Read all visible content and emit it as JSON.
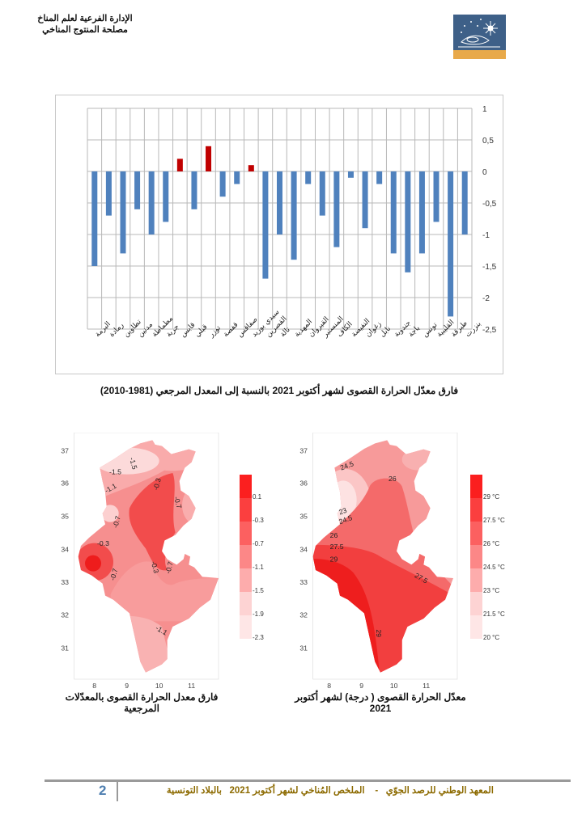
{
  "header": {
    "line1": "الإدارة الفرعية لعلم المناخ",
    "line2": "مصلحة المنتوج المناخي"
  },
  "chart_data": {
    "type": "bar",
    "title": "فارق معدّل الحرارة القصوى لشهر أكتوبر 2021 بالنسبة إلى المعدل المرجعي (1981-2010)",
    "categories": [
      "البرمة",
      "رمادة",
      "تطاوين",
      "مدنين",
      "مطماطة",
      "جربة",
      "قابس",
      "قبلي",
      "توزر",
      "قفصة",
      "صفاقس",
      "سيدي بوزيد",
      "القصرين",
      "تالة",
      "المهدية",
      "القيروان",
      "المنستير",
      "الكاف",
      "النفيضة",
      "زغوان",
      "نابل",
      "جندوبة",
      "باجة",
      "تونس",
      "القليبية",
      "طبرقة",
      "بنزرت"
    ],
    "values": [
      -1.5,
      -0.7,
      -1.3,
      -0.6,
      -1.0,
      -0.8,
      0.2,
      -0.6,
      0.4,
      -0.4,
      -0.2,
      0.1,
      -1.7,
      -1.0,
      -1.4,
      -0.2,
      -0.7,
      -1.2,
      -0.1,
      -0.9,
      -0.2,
      -1.3,
      -1.6,
      -1.3,
      -0.8,
      -2.3,
      -1.0
    ],
    "ylim": [
      -2.5,
      1
    ],
    "yticks": [
      "1",
      "0,5",
      "0",
      "-0,5",
      "-1",
      "-1,5",
      "-2",
      "-2,5"
    ],
    "ytick_values": [
      1,
      0.5,
      0,
      -0.5,
      -1,
      -1.5,
      -2,
      -2.5
    ],
    "grid": true,
    "xlabel": "",
    "ylabel": "",
    "colors": {
      "negative": "#4f81bd",
      "positive": "#c00000"
    }
  },
  "maps": {
    "lat_ticks": [
      "37",
      "36",
      "35",
      "34",
      "33",
      "32",
      "31"
    ],
    "lon_ticks": [
      "8",
      "9",
      "10",
      "11"
    ],
    "left": {
      "caption": "فارق معدل الحرارة القصوى بالمعدّلات المرجعية",
      "legend": [
        "0.1",
        "-0.3",
        "-0.7",
        "-1.1",
        "-1.5",
        "-1.9",
        "-2.3"
      ],
      "contours": [
        "-1.5",
        "-1.5",
        "-1.1",
        "-0.3",
        "-0.7",
        "-0.7",
        "-0.3",
        "-0.3",
        "-0.7",
        "-0.7",
        "-1.1"
      ]
    },
    "right": {
      "caption": "معدّل الحرارة القصوى ( درجة) لشهر أكتوبر 2021",
      "legend": [
        "29 °C",
        "27.5 °C",
        "26 °C",
        "24.5 °C",
        "23 °C",
        "21.5 °C",
        "20 °C"
      ],
      "contours": [
        "24.5",
        "26",
        "23",
        "24.5",
        "26",
        "27.5",
        "29",
        "27.5",
        "29"
      ]
    }
  },
  "footer": {
    "page": "2",
    "text": "المعهد الوطني للرصد الجوّي   -    الملخص المُناخي لشهر أكتوبر 2021   بالبلاد التونسية"
  }
}
